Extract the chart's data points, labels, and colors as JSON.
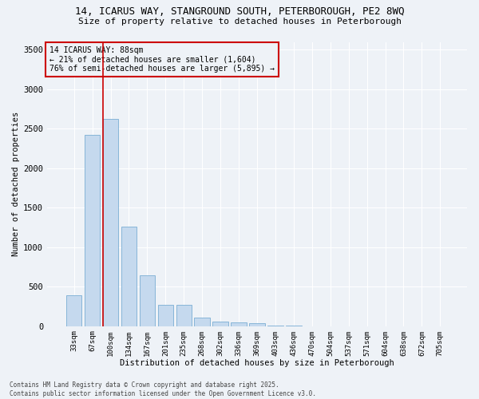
{
  "title_line1": "14, ICARUS WAY, STANGROUND SOUTH, PETERBOROUGH, PE2 8WQ",
  "title_line2": "Size of property relative to detached houses in Peterborough",
  "xlabel": "Distribution of detached houses by size in Peterborough",
  "ylabel": "Number of detached properties",
  "categories": [
    "33sqm",
    "67sqm",
    "100sqm",
    "134sqm",
    "167sqm",
    "201sqm",
    "235sqm",
    "268sqm",
    "302sqm",
    "336sqm",
    "369sqm",
    "403sqm",
    "436sqm",
    "470sqm",
    "504sqm",
    "537sqm",
    "571sqm",
    "604sqm",
    "638sqm",
    "672sqm",
    "705sqm"
  ],
  "values": [
    390,
    2420,
    2620,
    1260,
    640,
    270,
    270,
    110,
    55,
    50,
    35,
    10,
    5,
    0,
    0,
    0,
    0,
    0,
    0,
    0,
    0
  ],
  "bar_color": "#c5d9ee",
  "bar_edge_color": "#7aadd4",
  "vline_color": "#cc0000",
  "vline_pos": 1.575,
  "annotation_title": "14 ICARUS WAY: 88sqm",
  "annotation_line2": "← 21% of detached houses are smaller (1,604)",
  "annotation_line3": "76% of semi-detached houses are larger (5,895) →",
  "annotation_box_color": "#cc0000",
  "ylim": [
    0,
    3600
  ],
  "yticks": [
    0,
    500,
    1000,
    1500,
    2000,
    2500,
    3000,
    3500
  ],
  "background_color": "#eef2f7",
  "grid_color": "#ffffff",
  "footer_line1": "Contains HM Land Registry data © Crown copyright and database right 2025.",
  "footer_line2": "Contains public sector information licensed under the Open Government Licence v3.0."
}
